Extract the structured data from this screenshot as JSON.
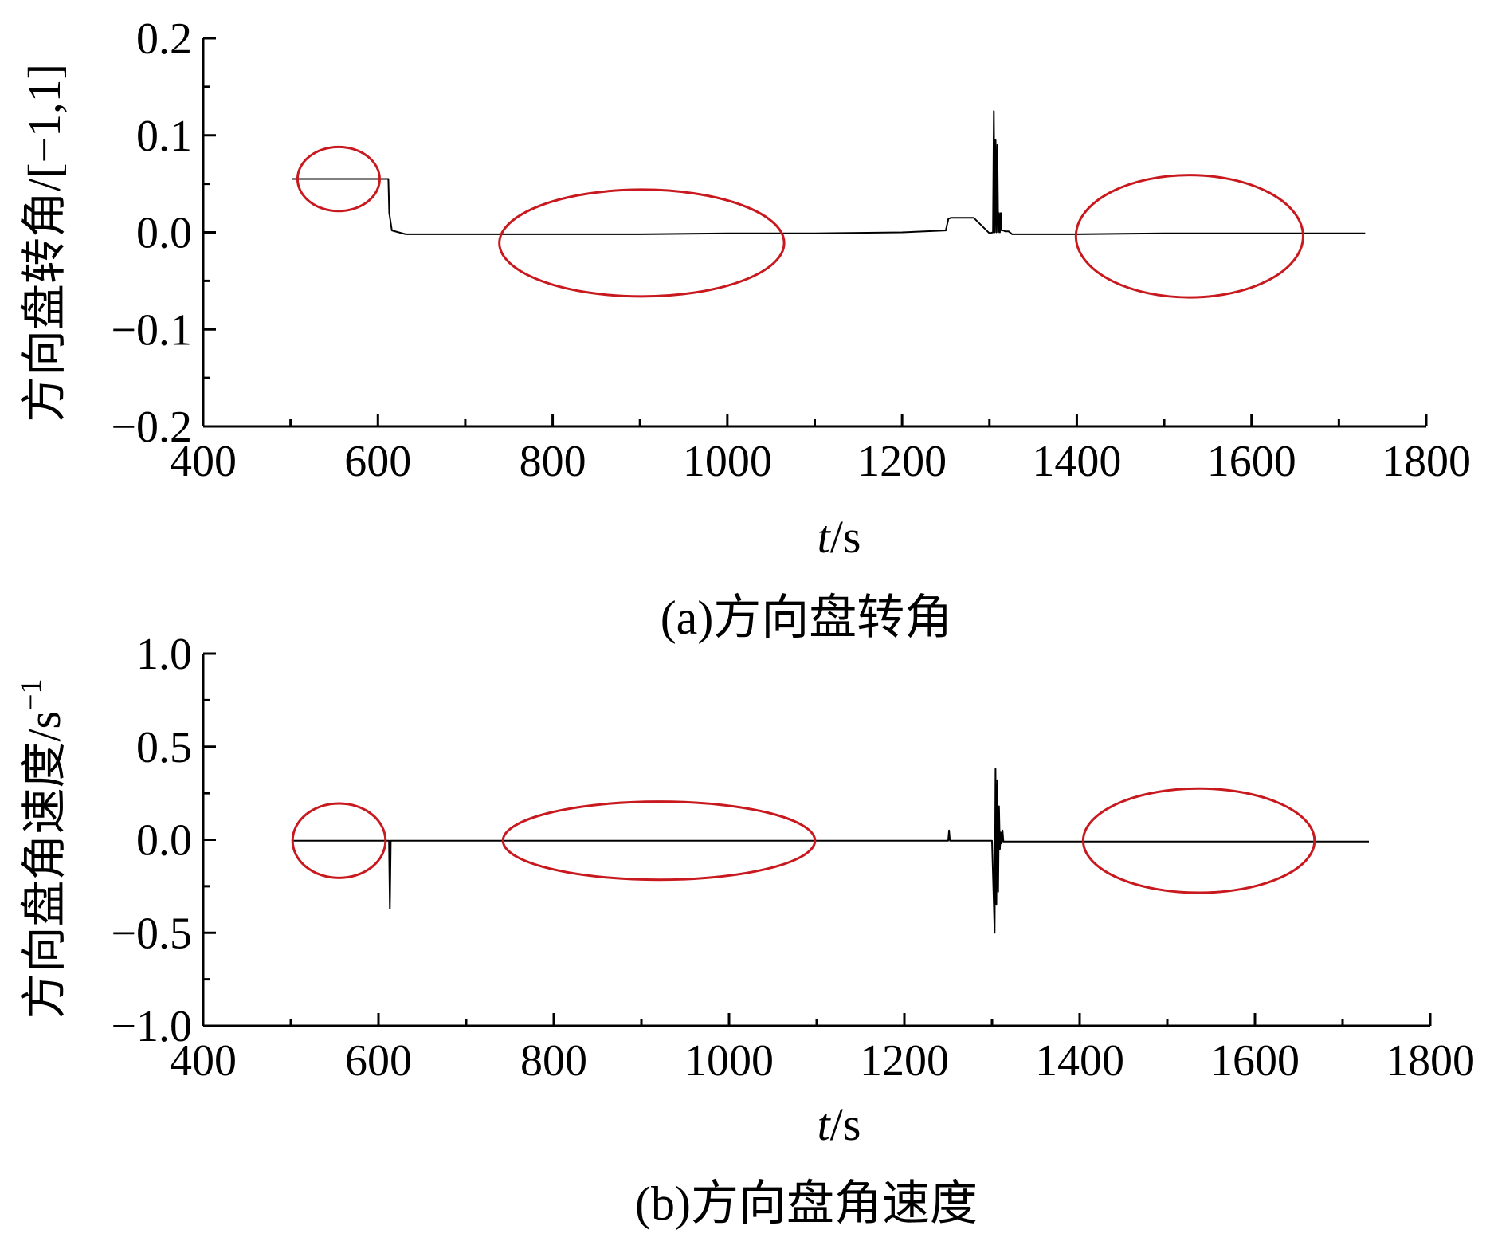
{
  "chart_data": [
    {
      "type": "line",
      "caption": "(a)方向盘转角",
      "ylabel": "方向盘转角/[−1,1]",
      "xlabel": {
        "italic": "t",
        "rest": "/s"
      },
      "xlim": [
        400,
        1800
      ],
      "ylim": [
        -0.2,
        0.2
      ],
      "x_ticks": [
        400,
        600,
        800,
        1000,
        1200,
        1400,
        1600,
        1800
      ],
      "x_tick_labels": [
        "400",
        "600",
        "800",
        "1000",
        "1200",
        "1400",
        "1600",
        "1800"
      ],
      "y_ticks": [
        0.2,
        0.1,
        0.0,
        -0.1,
        -0.2
      ],
      "y_tick_labels": [
        "0.2",
        "0.1",
        "0.0",
        "−0.1",
        "−0.2"
      ],
      "series_color": "#000000",
      "highlight_color": "#c8191e",
      "series": [
        {
          "x": [
            502,
            612,
            613,
            616,
            632,
            700,
            800,
            900,
            1000,
            1100,
            1200,
            1250,
            1253,
            1256,
            1282,
            1300,
            1304,
            1305,
            1306,
            1307,
            1308,
            1309,
            1310,
            1311,
            1312,
            1313,
            1314,
            1316,
            1318,
            1322,
            1326,
            1400,
            1500,
            1600,
            1730
          ],
          "y": [
            0.055,
            0.055,
            0.02,
            0.002,
            -0.002,
            -0.002,
            -0.002,
            -0.002,
            -0.001,
            -0.001,
            0.0,
            0.002,
            0.014,
            0.015,
            0.015,
            -0.001,
            0.0,
            0.125,
            0.0,
            0.095,
            0.0,
            0.09,
            0.0,
            0.02,
            0.0,
            0.02,
            0.002,
            0.002,
            0.001,
            0.001,
            -0.002,
            -0.002,
            -0.001,
            -0.001,
            -0.001
          ]
        }
      ],
      "highlights": [
        {
          "cx": 555,
          "cy": 0.055,
          "rx": 47,
          "ry": 0.033
        },
        {
          "cx": 902,
          "cy": -0.011,
          "rx": 163,
          "ry": 0.055
        },
        {
          "cx": 1529,
          "cy": -0.004,
          "rx": 130,
          "ry": 0.063
        }
      ]
    },
    {
      "type": "line",
      "caption": "(b)方向盘角速度",
      "ylabel": {
        "text": "方向盘角速度/s",
        "superscript": "−1"
      },
      "xlabel": {
        "italic": "t",
        "rest": "/s"
      },
      "xlim": [
        400,
        1800
      ],
      "ylim": [
        -1.0,
        1.0
      ],
      "x_ticks": [
        400,
        600,
        800,
        1000,
        1200,
        1400,
        1600,
        1800
      ],
      "x_tick_labels": [
        "400",
        "600",
        "800",
        "1000",
        "1200",
        "1400",
        "1600",
        "1800"
      ],
      "y_ticks": [
        1.0,
        0.5,
        0.0,
        -0.5,
        -1.0
      ],
      "y_tick_labels": [
        "1.0",
        "0.5",
        "0.0",
        "−0.5",
        "−1.0"
      ],
      "series_color": "#000000",
      "highlight_color": "#c8191e",
      "series": [
        {
          "x": [
            502,
            612,
            613,
            614,
            615,
            700,
            800,
            900,
            1000,
            1100,
            1200,
            1250,
            1251,
            1252,
            1300,
            1303,
            1304,
            1305,
            1306,
            1307,
            1308,
            1309,
            1310,
            1311,
            1312,
            1313,
            1314,
            1320,
            1400,
            1500,
            1600,
            1730
          ],
          "y": [
            -0.005,
            -0.005,
            -0.37,
            -0.005,
            -0.005,
            -0.005,
            -0.005,
            -0.005,
            -0.005,
            -0.005,
            -0.005,
            -0.005,
            0.05,
            -0.005,
            -0.005,
            -0.5,
            0.38,
            -0.35,
            0.32,
            -0.28,
            0.18,
            -0.05,
            0.04,
            -0.02,
            0.05,
            -0.01,
            -0.01,
            -0.01,
            -0.01,
            -0.01,
            -0.01,
            -0.01
          ]
        }
      ],
      "highlights": [
        {
          "cx": 555,
          "cy": -0.005,
          "rx": 53,
          "ry": 0.2
        },
        {
          "cx": 920,
          "cy": -0.005,
          "rx": 178,
          "ry": 0.21
        },
        {
          "cx": 1536,
          "cy": -0.005,
          "rx": 132,
          "ry": 0.28
        }
      ]
    }
  ]
}
